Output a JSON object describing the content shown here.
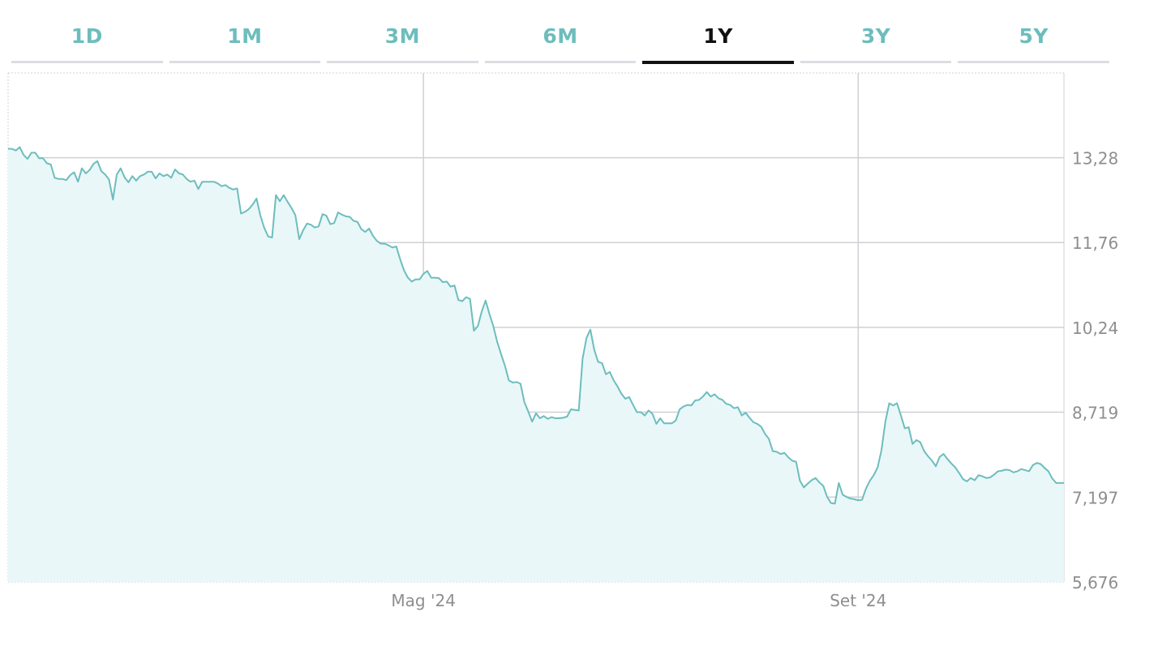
{
  "tabs": [
    {
      "label": "1D",
      "active": false
    },
    {
      "label": "1M",
      "active": false
    },
    {
      "label": "3M",
      "active": false
    },
    {
      "label": "6M",
      "active": false
    },
    {
      "label": "1Y",
      "active": true
    },
    {
      "label": "3Y",
      "active": false
    },
    {
      "label": "5Y",
      "active": false
    }
  ],
  "colors": {
    "line": "#6dbdbd",
    "fill": "#e9f7f8",
    "grid": "#cfd0d4",
    "tab_inactive": "#6dbdbd",
    "tab_active": "#111111"
  },
  "chart_data": {
    "type": "area",
    "title": "",
    "xlabel": "",
    "ylabel": "",
    "y_ticks": [
      "13,28",
      "11,76",
      "10,24",
      "8,719",
      "7,197",
      "5,676"
    ],
    "y_tick_values": [
      13.28,
      11.76,
      10.24,
      8.719,
      7.197,
      5.676
    ],
    "ylim": [
      5.676,
      14.8
    ],
    "x_ticks": [
      {
        "label": "Mag '24",
        "index": 107
      },
      {
        "label": "Set '24",
        "index": 219
      }
    ],
    "grid": true,
    "legend": "none",
    "series": [
      {
        "values": [
          13.44,
          13.44,
          13.41,
          13.47,
          13.33,
          13.26,
          13.37,
          13.37,
          13.27,
          13.27,
          13.18,
          13.16,
          12.92,
          12.9,
          12.9,
          12.88,
          12.97,
          13.02,
          12.85,
          13.09,
          13.0,
          13.06,
          13.17,
          13.22,
          13.04,
          12.98,
          12.89,
          12.53,
          12.98,
          13.09,
          12.93,
          12.84,
          12.95,
          12.87,
          12.95,
          12.98,
          13.03,
          13.03,
          12.91,
          13.0,
          12.95,
          12.98,
          12.92,
          13.07,
          13.0,
          12.98,
          12.9,
          12.85,
          12.87,
          12.72,
          12.85,
          12.85,
          12.85,
          12.85,
          12.82,
          12.77,
          12.79,
          12.74,
          12.71,
          12.73,
          12.28,
          12.31,
          12.36,
          12.44,
          12.55,
          12.24,
          12.02,
          11.87,
          11.85,
          12.61,
          12.5,
          12.61,
          12.49,
          12.38,
          12.25,
          11.82,
          11.98,
          12.1,
          12.08,
          12.03,
          12.05,
          12.27,
          12.24,
          12.09,
          12.11,
          12.3,
          12.26,
          12.23,
          12.22,
          12.15,
          12.13,
          12.0,
          11.95,
          12.01,
          11.88,
          11.79,
          11.74,
          11.74,
          11.71,
          11.67,
          11.69,
          11.46,
          11.26,
          11.13,
          11.06,
          11.1,
          11.1,
          11.2,
          11.25,
          11.13,
          11.13,
          11.12,
          11.05,
          11.06,
          10.97,
          10.99,
          10.73,
          10.71,
          10.78,
          10.75,
          10.18,
          10.26,
          10.52,
          10.72,
          10.48,
          10.26,
          9.98,
          9.76,
          9.55,
          9.29,
          9.25,
          9.26,
          9.23,
          8.9,
          8.73,
          8.55,
          8.7,
          8.61,
          8.65,
          8.6,
          8.63,
          8.61,
          8.61,
          8.62,
          8.64,
          8.77,
          8.76,
          8.75,
          9.68,
          10.05,
          10.2,
          9.84,
          9.62,
          9.6,
          9.4,
          9.44,
          9.29,
          9.18,
          9.05,
          8.96,
          8.99,
          8.85,
          8.72,
          8.72,
          8.66,
          8.75,
          8.69,
          8.51,
          8.61,
          8.52,
          8.52,
          8.52,
          8.57,
          8.77,
          8.82,
          8.85,
          8.84,
          8.93,
          8.94,
          9.0,
          9.08,
          9.0,
          9.04,
          8.97,
          8.94,
          8.87,
          8.85,
          8.79,
          8.81,
          8.66,
          8.71,
          8.62,
          8.54,
          8.51,
          8.46,
          8.33,
          8.24,
          8.02,
          8.01,
          7.97,
          7.99,
          7.91,
          7.85,
          7.83,
          7.49,
          7.37,
          7.44,
          7.5,
          7.54,
          7.46,
          7.4,
          7.2,
          7.09,
          7.08,
          7.45,
          7.24,
          7.2,
          7.17,
          7.16,
          7.14,
          7.15,
          7.35,
          7.49,
          7.59,
          7.73,
          8.04,
          8.55,
          8.88,
          8.84,
          8.88,
          8.66,
          8.43,
          8.45,
          8.15,
          8.22,
          8.18,
          8.02,
          7.93,
          7.85,
          7.75,
          7.92,
          7.97,
          7.88,
          7.8,
          7.73,
          7.63,
          7.52,
          7.48,
          7.54,
          7.5,
          7.59,
          7.57,
          7.54,
          7.55,
          7.6,
          7.66,
          7.67,
          7.69,
          7.68,
          7.64,
          7.66,
          7.7,
          7.68,
          7.66,
          7.77,
          7.81,
          7.79,
          7.72,
          7.66,
          7.53,
          7.45,
          7.45,
          7.45
        ]
      }
    ]
  }
}
